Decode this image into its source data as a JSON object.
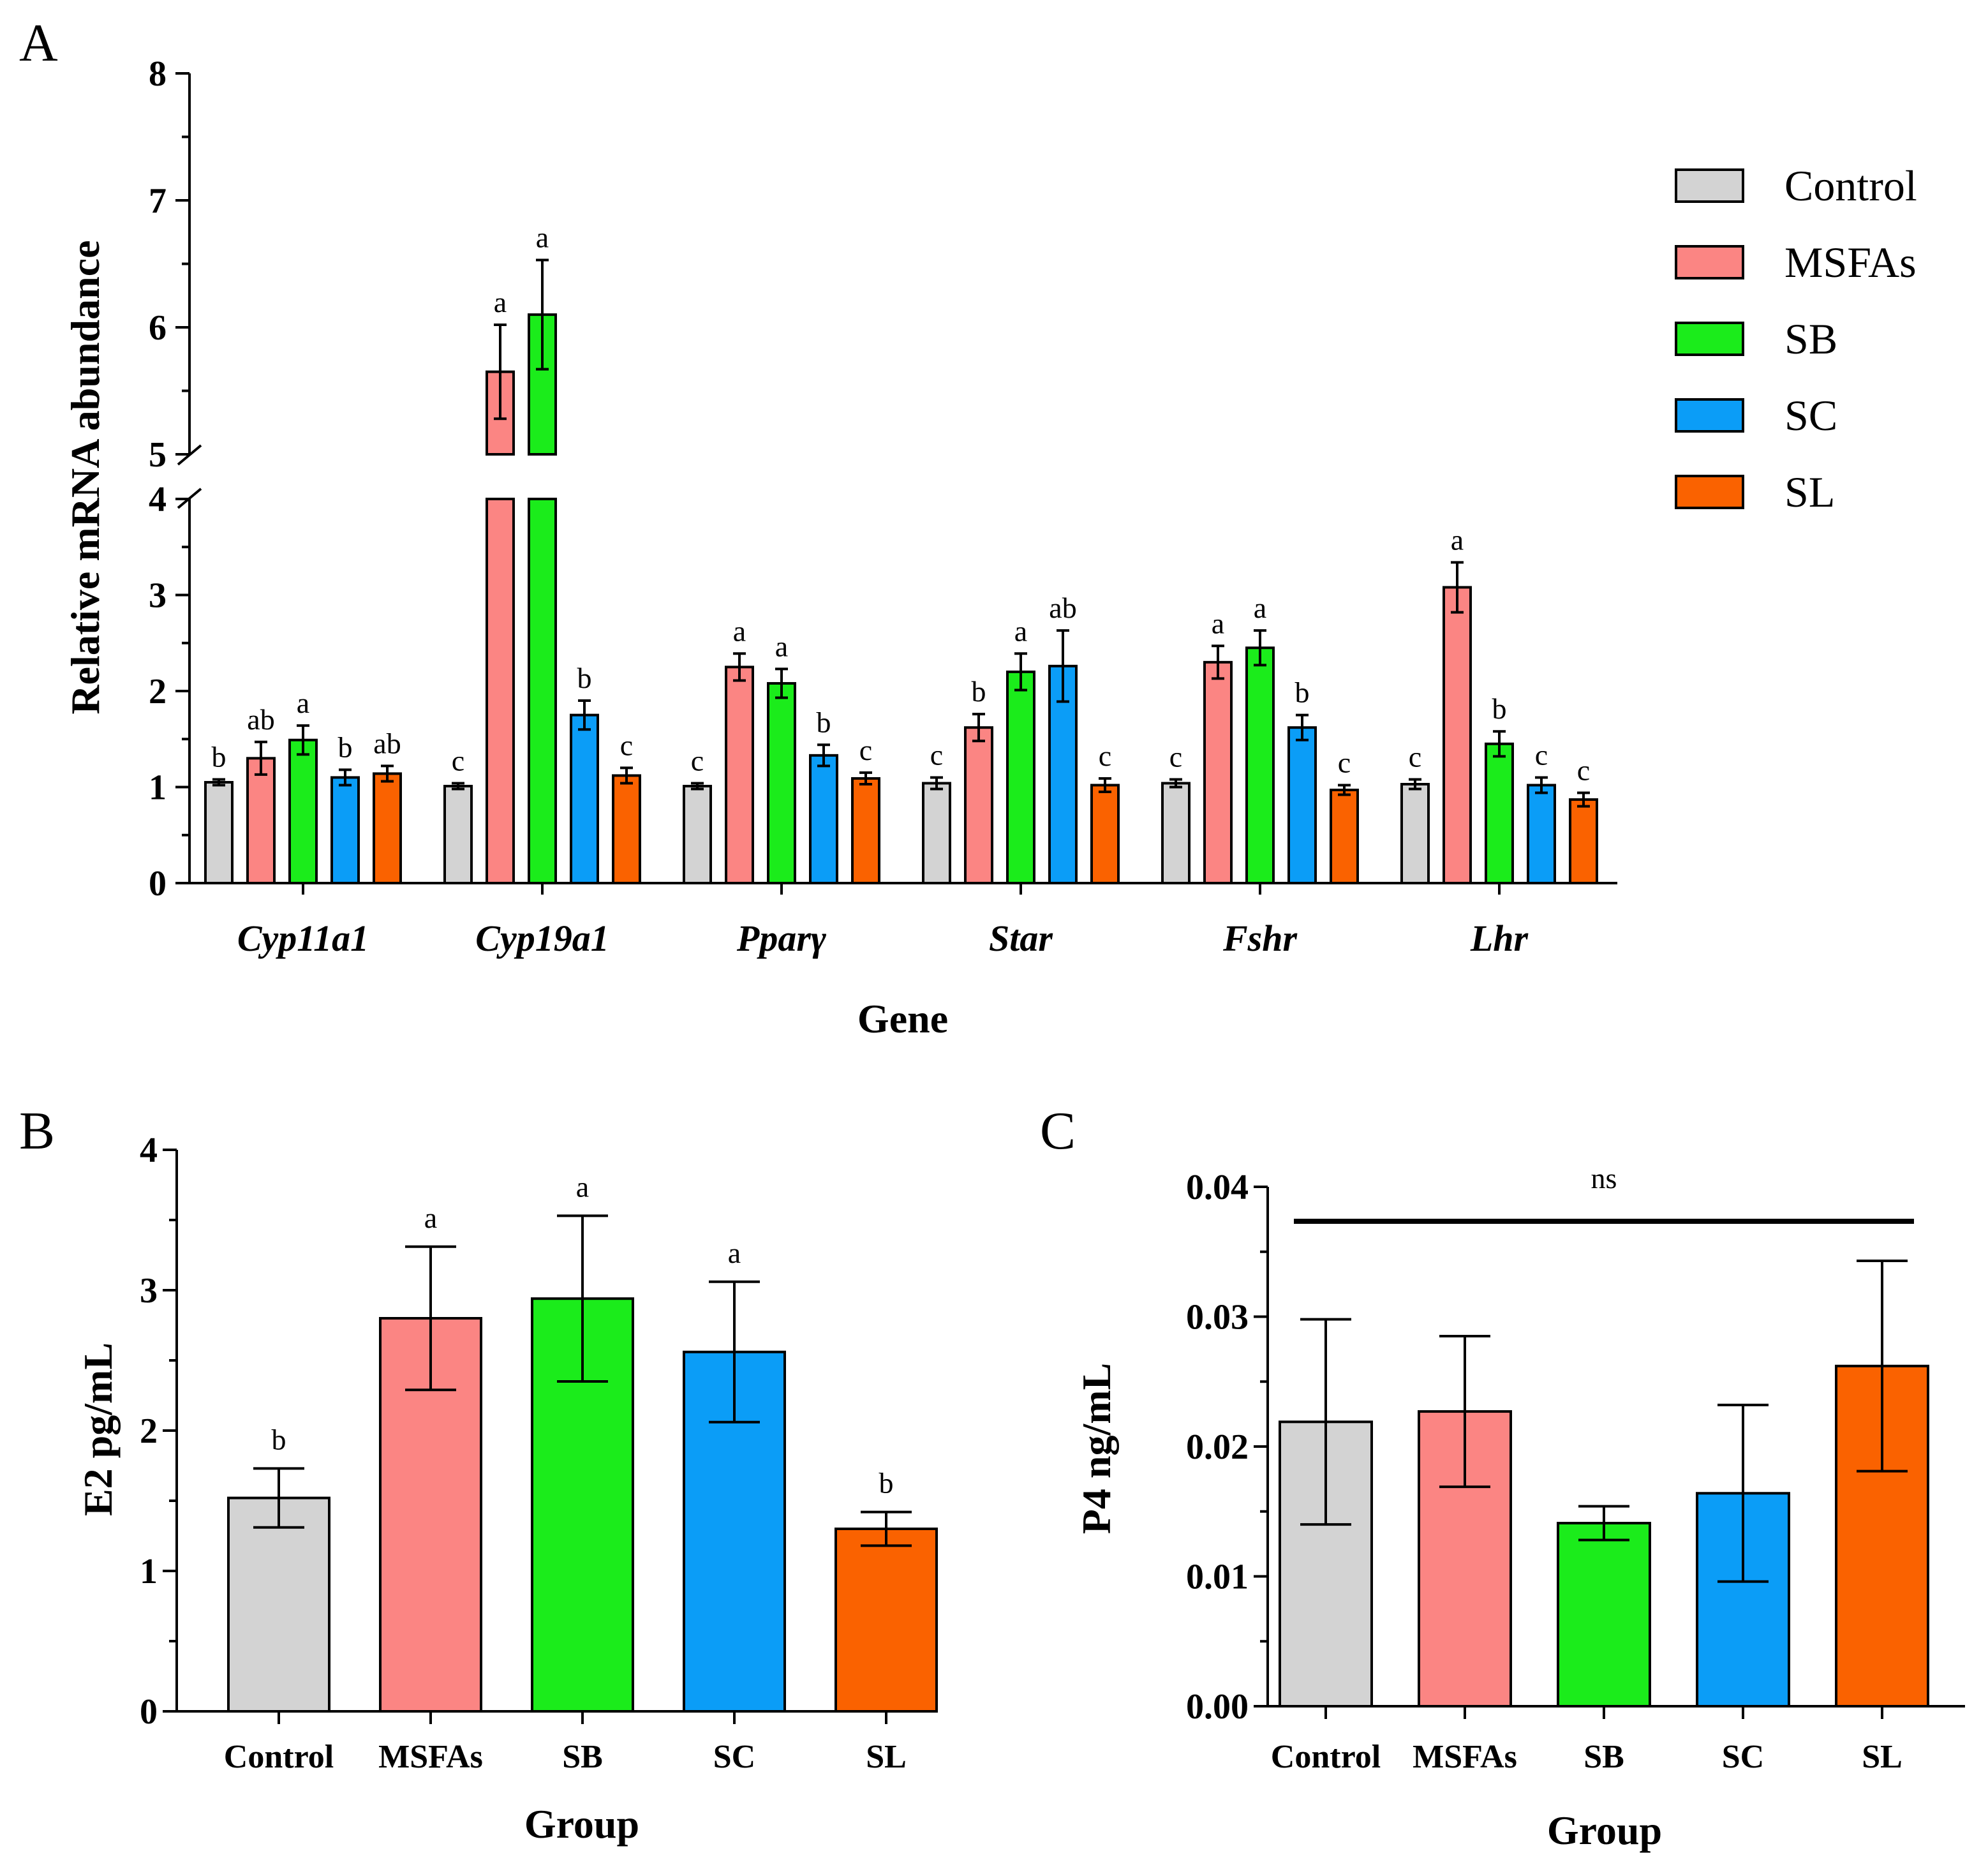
{
  "panels": {
    "A": {
      "letter": "A"
    },
    "B": {
      "letter": "B"
    },
    "C": {
      "letter": "C"
    }
  },
  "colors": {
    "Control": "#d3d3d3",
    "MSFAs": "#fb8583",
    "SB": "#1bec1b",
    "SC": "#0b9df7",
    "SL": "#fa6200"
  },
  "chart_data": [
    {
      "panel": "A",
      "type": "bar",
      "ylabel": "Relative mRNA abundance",
      "xlabel": "Gene",
      "axis_break": [
        4,
        5
      ],
      "lower_ylim": [
        0,
        4
      ],
      "upper_ylim": [
        5,
        8
      ],
      "lower_ticks": [
        "0",
        "1",
        "2",
        "3",
        "4"
      ],
      "upper_ticks": [
        "5",
        "6",
        "7",
        "8"
      ],
      "categories": [
        "Cyp11a1",
        "Cyp19a1",
        "Pparγ",
        "Star",
        "Fshr",
        "Lhr"
      ],
      "legend": [
        "Control",
        "MSFAs",
        "SB",
        "SC",
        "SL"
      ],
      "legend_position": "top-right",
      "series": [
        {
          "name": "Control",
          "values": [
            1.05,
            1.01,
            1.01,
            1.04,
            1.04,
            1.03
          ],
          "errors": [
            0.03,
            0.03,
            0.03,
            0.06,
            0.04,
            0.05
          ],
          "labels": [
            "b",
            "c",
            "c",
            "c",
            "c",
            "c"
          ]
        },
        {
          "name": "MSFAs",
          "values": [
            1.3,
            5.65,
            2.25,
            1.62,
            2.3,
            3.08
          ],
          "errors": [
            0.17,
            0.37,
            0.14,
            0.14,
            0.17,
            0.26
          ],
          "labels": [
            "ab",
            "a",
            "a",
            "b",
            "a",
            "a"
          ]
        },
        {
          "name": "SB",
          "values": [
            1.49,
            6.1,
            2.08,
            2.2,
            2.45,
            1.45
          ],
          "errors": [
            0.15,
            0.43,
            0.15,
            0.19,
            0.18,
            0.13
          ],
          "labels": [
            "a",
            "a",
            "a",
            "a",
            "a",
            "b"
          ]
        },
        {
          "name": "SC",
          "values": [
            1.1,
            1.75,
            1.33,
            2.26,
            1.62,
            1.02
          ],
          "errors": [
            0.08,
            0.15,
            0.11,
            0.37,
            0.13,
            0.08
          ],
          "labels": [
            "b",
            "b",
            "b",
            "ab",
            "b",
            "c"
          ]
        },
        {
          "name": "SL",
          "values": [
            1.14,
            1.12,
            1.09,
            1.02,
            0.97,
            0.87
          ],
          "errors": [
            0.08,
            0.08,
            0.06,
            0.07,
            0.05,
            0.07
          ],
          "labels": [
            "ab",
            "c",
            "c",
            "c",
            "c",
            "c"
          ]
        }
      ]
    },
    {
      "panel": "B",
      "type": "bar",
      "ylabel": "E2 pg/mL",
      "xlabel": "Group",
      "ylim": [
        0,
        4
      ],
      "ticks": [
        "0",
        "1",
        "2",
        "3",
        "4"
      ],
      "categories": [
        "Control",
        "MSFAs",
        "SB",
        "SC",
        "SL"
      ],
      "values": [
        1.52,
        2.8,
        2.94,
        2.56,
        1.3
      ],
      "errors": [
        0.21,
        0.51,
        0.59,
        0.5,
        0.12
      ],
      "labels": [
        "b",
        "a",
        "a",
        "a",
        "b"
      ]
    },
    {
      "panel": "C",
      "type": "bar",
      "ylabel": "P4 ng/mL",
      "xlabel": "Group",
      "ylim": [
        0,
        0.04
      ],
      "ticks": [
        "0.00",
        "0.01",
        "0.02",
        "0.03",
        "0.04"
      ],
      "categories": [
        "Control",
        "MSFAs",
        "SB",
        "SC",
        "SL"
      ],
      "values": [
        0.0219,
        0.0227,
        0.0141,
        0.0164,
        0.0262
      ],
      "errors": [
        0.0079,
        0.0058,
        0.0013,
        0.0068,
        0.0081
      ],
      "annotation": "ns"
    }
  ]
}
